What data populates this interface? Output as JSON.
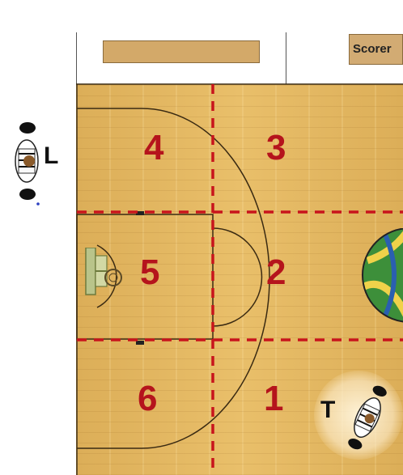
{
  "diagram": {
    "scorer_label": "Scorer",
    "zones": [
      {
        "id": 1,
        "label": "1"
      },
      {
        "id": 2,
        "label": "2"
      },
      {
        "id": 3,
        "label": "3"
      },
      {
        "id": 4,
        "label": "4"
      },
      {
        "id": 5,
        "label": "5"
      },
      {
        "id": 6,
        "label": "6"
      }
    ],
    "officials": [
      {
        "label": "L"
      },
      {
        "label": "T"
      }
    ],
    "colors": {
      "court": "#e2b25a",
      "zone_numbers": "#b5141c",
      "dashed_lines": "#c8141c",
      "court_lines": "#3a2a12",
      "scorer_box": "#d2ab73",
      "bench": "#d3a969"
    }
  }
}
